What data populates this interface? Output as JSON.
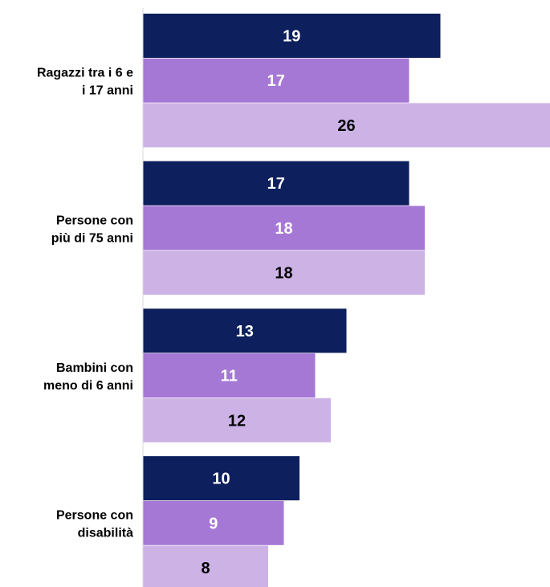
{
  "chart_data": {
    "type": "bar",
    "orientation": "horizontal",
    "categories": [
      [
        "Ragazzi tra i 6 e",
        "i 17 anni"
      ],
      [
        "Persone con",
        "più di 75 anni"
      ],
      [
        "Bambini con",
        "meno di 6 anni"
      ],
      [
        "Persone con",
        "disabilità"
      ]
    ],
    "series": [
      {
        "values": [
          19,
          17,
          13,
          10
        ],
        "color": "#0d1f5c",
        "label_color": "#ffffff"
      },
      {
        "values": [
          17,
          18,
          11,
          9
        ],
        "color": "#a678d6",
        "label_color": "#ffffff"
      },
      {
        "values": [
          26,
          18,
          12,
          8
        ],
        "color": "#cdb2e6",
        "label_color": "#000000"
      }
    ],
    "xlim": [
      0,
      26
    ],
    "grid": false,
    "legend": "none"
  }
}
